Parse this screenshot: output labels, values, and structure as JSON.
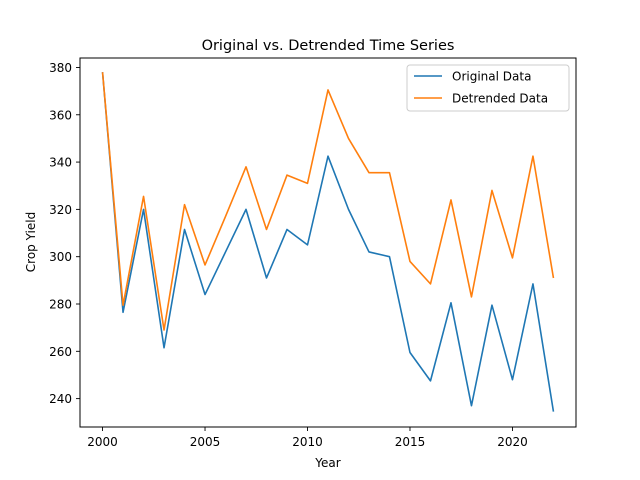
{
  "chart_data": {
    "type": "line",
    "title": "Original vs. Detrended Time Series",
    "xlabel": "Year",
    "ylabel": "Crop Yield",
    "x": [
      2000,
      2001,
      2002,
      2003,
      2004,
      2005,
      2006,
      2007,
      2008,
      2009,
      2010,
      2011,
      2012,
      2013,
      2014,
      2015,
      2016,
      2017,
      2018,
      2019,
      2020,
      2021,
      2022
    ],
    "xlim": [
      1998.9,
      2023.1
    ],
    "ylim": [
      228,
      384
    ],
    "xticks": [
      2000,
      2005,
      2010,
      2015,
      2020
    ],
    "yticks": [
      240,
      260,
      280,
      300,
      320,
      340,
      360,
      380
    ],
    "grid": false,
    "legend_position": "upper right",
    "series": [
      {
        "name": "Original Data",
        "color": "#1f77b4",
        "values": [
          378,
          276.5,
          320,
          261.5,
          311.5,
          284,
          302,
          320,
          291,
          311.5,
          305,
          342.5,
          320,
          302,
          300,
          259.5,
          247.5,
          280.5,
          237,
          279.5,
          248,
          288.5,
          234.5
        ]
      },
      {
        "name": "Detrended Data",
        "color": "#ff7f0e",
        "values": [
          378,
          279.5,
          325.5,
          269,
          322,
          296.5,
          317,
          338,
          311.5,
          334.5,
          331,
          370.5,
          350,
          335.5,
          335.5,
          298,
          288.5,
          324,
          283,
          328,
          299.5,
          342.5,
          291
        ]
      }
    ]
  }
}
